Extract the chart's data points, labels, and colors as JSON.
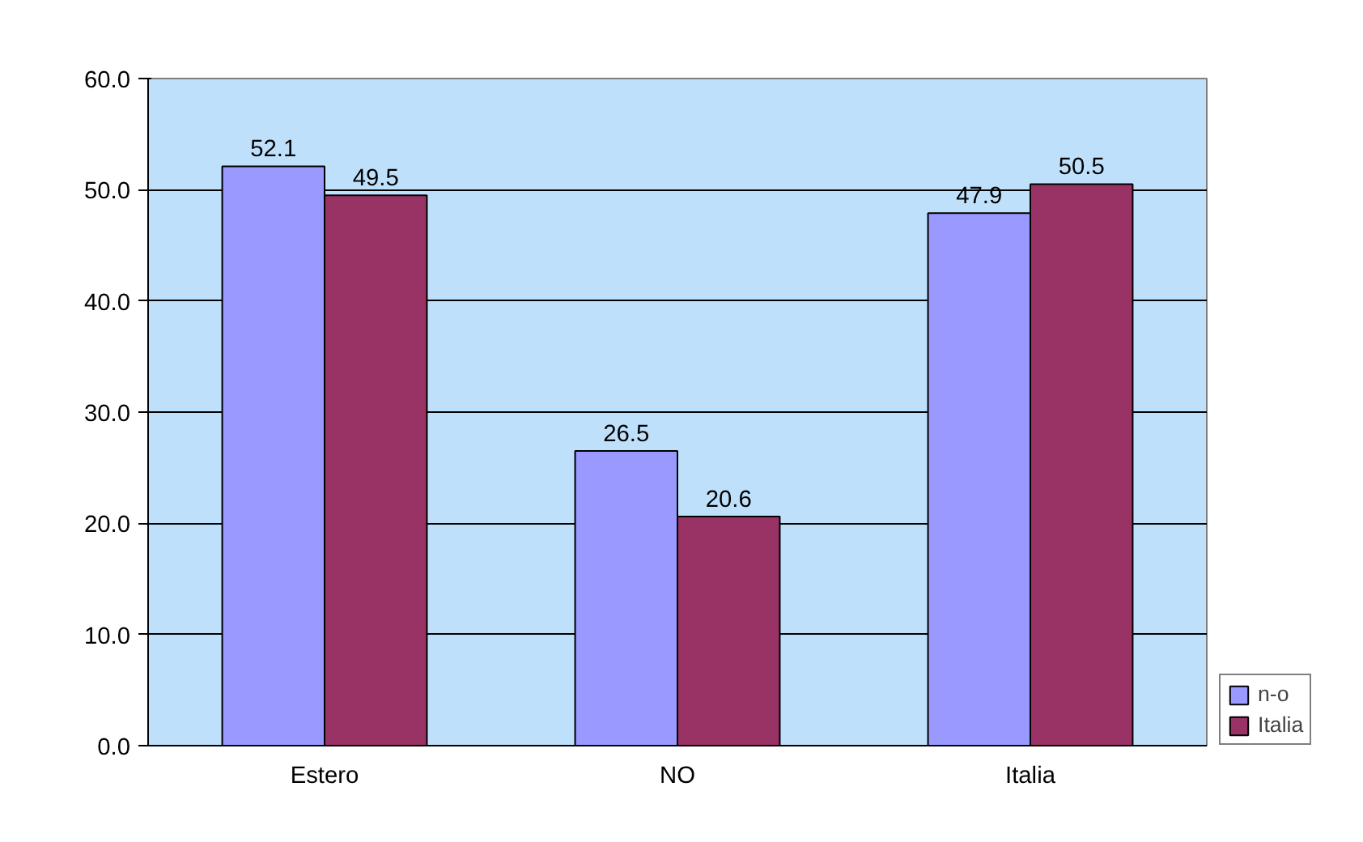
{
  "chart_data": {
    "type": "bar",
    "categories": [
      "Estero",
      "NO",
      "Italia"
    ],
    "series": [
      {
        "name": "n-o",
        "color": "#9999ff",
        "values": [
          52.1,
          26.5,
          47.9
        ]
      },
      {
        "name": "Italia",
        "color": "#993366",
        "values": [
          49.5,
          20.6,
          50.5
        ]
      }
    ],
    "ylim": [
      0,
      60
    ],
    "yticks": [
      {
        "value": 0,
        "label": "0.0"
      },
      {
        "value": 10,
        "label": "10.0"
      },
      {
        "value": 20,
        "label": "20.0"
      },
      {
        "value": 30,
        "label": "30.0"
      },
      {
        "value": 40,
        "label": "40.0"
      },
      {
        "value": 50,
        "label": "50.0"
      },
      {
        "value": 60,
        "label": "60.0"
      }
    ],
    "grid": "y",
    "legend": "right",
    "data_labels": true
  }
}
